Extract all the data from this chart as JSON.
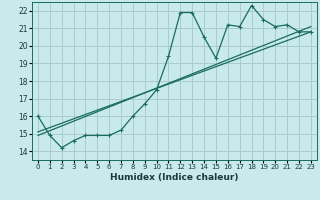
{
  "bg_color": "#c8eaea",
  "grid_color": "#aacccc",
  "line_color": "#1a6b60",
  "xlabel": "Humidex (Indice chaleur)",
  "xlim": [
    -0.5,
    23.5
  ],
  "ylim": [
    13.5,
    22.5
  ],
  "yticks": [
    14,
    15,
    16,
    17,
    18,
    19,
    20,
    21,
    22
  ],
  "xticks": [
    0,
    1,
    2,
    3,
    4,
    5,
    6,
    7,
    8,
    9,
    10,
    11,
    12,
    13,
    14,
    15,
    16,
    17,
    18,
    19,
    20,
    21,
    22,
    23
  ],
  "series_wavy": {
    "x": [
      0,
      1,
      2,
      3,
      4,
      5,
      6,
      7,
      8,
      9,
      10,
      11,
      12,
      13,
      14,
      15,
      16,
      17,
      18,
      19,
      20,
      21,
      22,
      23
    ],
    "y": [
      16.0,
      14.9,
      14.2,
      14.6,
      14.9,
      14.9,
      14.9,
      15.2,
      16.0,
      16.7,
      17.5,
      19.4,
      21.9,
      21.9,
      20.5,
      19.3,
      21.2,
      21.1,
      22.3,
      21.5,
      21.1,
      21.2,
      20.8,
      20.8
    ]
  },
  "series_line1": {
    "x": [
      0,
      23
    ],
    "y": [
      14.9,
      21.1
    ]
  },
  "series_line2": {
    "x": [
      0,
      23
    ],
    "y": [
      15.1,
      20.8
    ]
  }
}
